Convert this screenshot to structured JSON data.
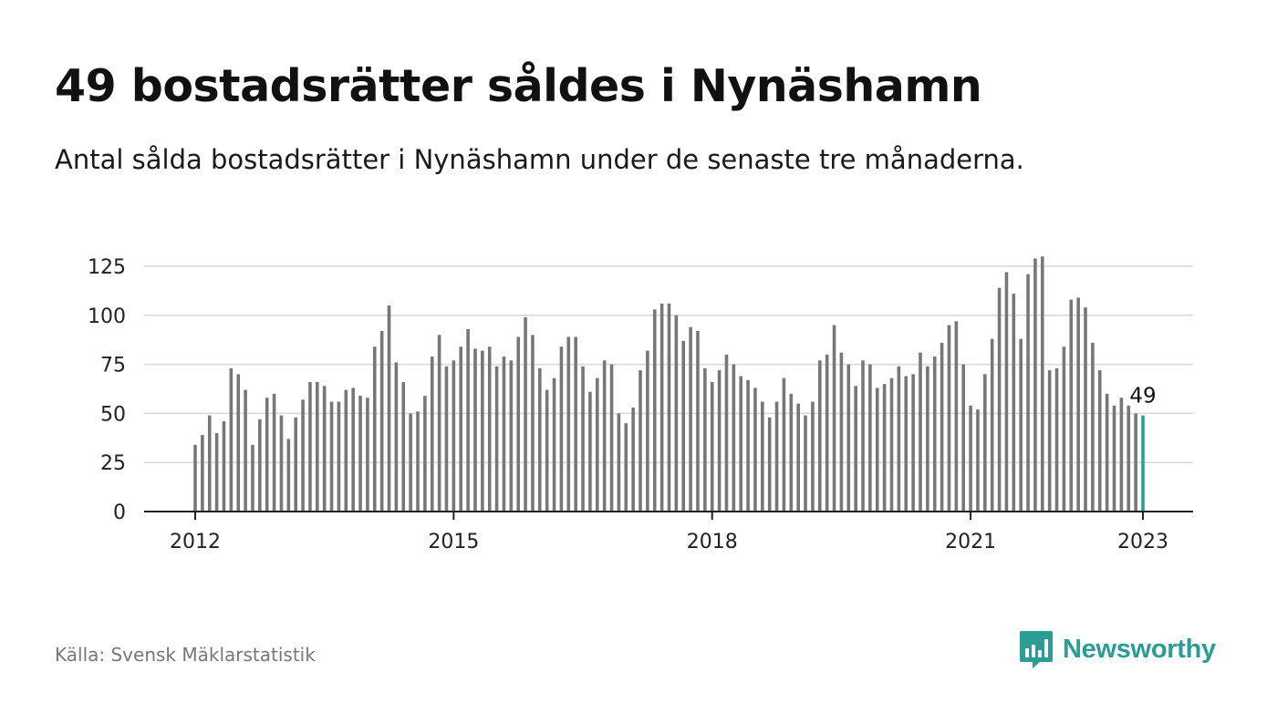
{
  "header": {
    "title": "49 bostadsrätter såldes i Nynäshamn",
    "subtitle": "Antal sålda bostadsrätter i Nynäshamn under de senaste tre månaderna."
  },
  "footer": {
    "source": "Källa: Svensk Mäklarstatistik",
    "brand": "Newsworthy",
    "brand_icon": "bar-chart-speech-icon"
  },
  "colors": {
    "bar": "#777777",
    "highlight": "#22a39a",
    "grid": "#d7d7d7",
    "axis": "#222222",
    "brand": "#2a9d94"
  },
  "chart_data": {
    "type": "bar",
    "x_unit": "month",
    "x_start": "2012-01",
    "x_end": "2023-01",
    "xtick_labels": [
      "2012",
      "2015",
      "2018",
      "2021",
      "2023"
    ],
    "ylim": [
      0,
      130
    ],
    "yticks": [
      0,
      25,
      50,
      75,
      100,
      125
    ],
    "grid": true,
    "values": [
      34,
      39,
      49,
      40,
      46,
      73,
      70,
      62,
      34,
      47,
      58,
      60,
      49,
      37,
      48,
      57,
      66,
      66,
      64,
      56,
      56,
      62,
      63,
      59,
      58,
      84,
      92,
      105,
      76,
      66,
      50,
      51,
      59,
      79,
      90,
      74,
      77,
      84,
      93,
      83,
      82,
      84,
      74,
      79,
      77,
      89,
      99,
      90,
      73,
      62,
      68,
      84,
      89,
      89,
      74,
      61,
      68,
      77,
      75,
      50,
      45,
      53,
      72,
      82,
      103,
      106,
      106,
      100,
      87,
      94,
      92,
      73,
      66,
      72,
      80,
      75,
      69,
      67,
      63,
      56,
      48,
      56,
      68,
      60,
      55,
      49,
      56,
      77,
      80,
      95,
      81,
      75,
      64,
      77,
      75,
      63,
      65,
      68,
      74,
      69,
      70,
      81,
      74,
      79,
      86,
      95,
      97,
      75,
      54,
      52,
      70,
      88,
      114,
      122,
      111,
      88,
      121,
      129,
      130,
      72,
      73,
      84,
      108,
      109,
      104,
      86,
      72,
      60,
      54,
      58,
      54,
      50,
      49
    ],
    "highlight_last": true,
    "last_label": "49"
  }
}
